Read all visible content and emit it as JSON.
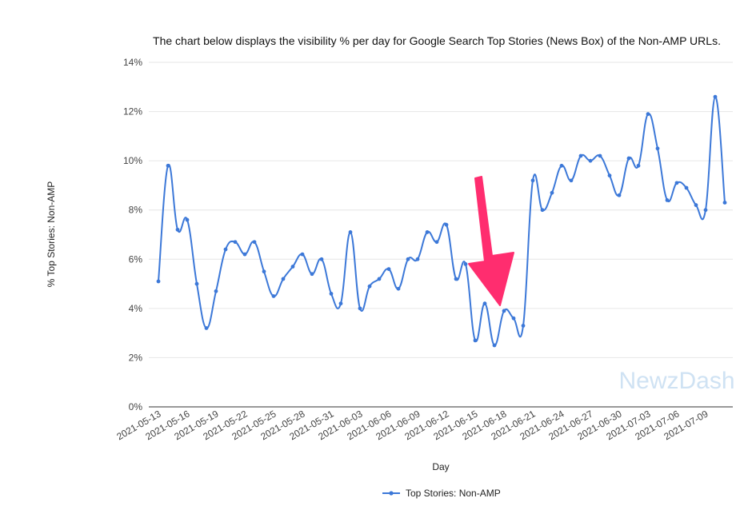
{
  "chart_data": {
    "type": "line",
    "title": "The chart below displays the visibility % per day for Google Search Top Stories (News Box) of the Non-AMP URLs.",
    "xlabel": "Day",
    "ylabel": "% Top Stories: Non-AMP",
    "ylim": [
      0,
      14
    ],
    "y_ticks": [
      "0%",
      "2%",
      "4%",
      "6%",
      "8%",
      "10%",
      "12%",
      "14%"
    ],
    "x_tick_labels": [
      "2021-05-13",
      "2021-05-16",
      "2021-05-19",
      "2021-05-22",
      "2021-05-25",
      "2021-05-28",
      "2021-05-31",
      "2021-06-03",
      "2021-06-06",
      "2021-06-09",
      "2021-06-12",
      "2021-06-15",
      "2021-06-18",
      "2021-06-21",
      "2021-06-24",
      "2021-06-27",
      "2021-06-30",
      "2021-07-03",
      "2021-07-06",
      "2021-07-09"
    ],
    "grid": true,
    "legend_position": "bottom",
    "series": [
      {
        "name": "Top Stories: Non-AMP",
        "color": "#3c78d8",
        "x": [
          "2021-05-13",
          "2021-05-14",
          "2021-05-15",
          "2021-05-16",
          "2021-05-17",
          "2021-05-18",
          "2021-05-19",
          "2021-05-20",
          "2021-05-21",
          "2021-05-22",
          "2021-05-23",
          "2021-05-24",
          "2021-05-25",
          "2021-05-26",
          "2021-05-27",
          "2021-05-28",
          "2021-05-29",
          "2021-05-30",
          "2021-05-31",
          "2021-06-01",
          "2021-06-02",
          "2021-06-03",
          "2021-06-04",
          "2021-06-05",
          "2021-06-06",
          "2021-06-07",
          "2021-06-08",
          "2021-06-09",
          "2021-06-10",
          "2021-06-11",
          "2021-06-12",
          "2021-06-13",
          "2021-06-14",
          "2021-06-15",
          "2021-06-16",
          "2021-06-17",
          "2021-06-18",
          "2021-06-19",
          "2021-06-20",
          "2021-06-21",
          "2021-06-22",
          "2021-06-23",
          "2021-06-24",
          "2021-06-25",
          "2021-06-26",
          "2021-06-27",
          "2021-06-28",
          "2021-06-29",
          "2021-06-30",
          "2021-07-01",
          "2021-07-02",
          "2021-07-03",
          "2021-07-04",
          "2021-07-05",
          "2021-07-06",
          "2021-07-07",
          "2021-07-08",
          "2021-07-09",
          "2021-07-10",
          "2021-07-11"
        ],
        "values": [
          5.1,
          9.8,
          7.2,
          7.6,
          5.0,
          3.2,
          4.7,
          6.4,
          6.7,
          6.2,
          6.7,
          5.5,
          4.5,
          5.2,
          5.7,
          6.2,
          5.4,
          6.0,
          4.6,
          4.2,
          7.1,
          4.0,
          4.9,
          5.2,
          5.6,
          4.8,
          6.0,
          6.0,
          7.1,
          6.7,
          7.4,
          5.2,
          5.8,
          2.7,
          4.2,
          2.5,
          3.9,
          3.6,
          3.3,
          9.2,
          8.0,
          8.7,
          9.8,
          9.2,
          10.2,
          10.0,
          10.2,
          9.4,
          8.6,
          10.1,
          9.8,
          11.9,
          10.5,
          8.4,
          9.1,
          8.9,
          8.2,
          8.0,
          12.6,
          8.3
        ]
      }
    ],
    "annotations": [
      "pink downward arrow pointing to the 2021-06-15 to 2021-06-20 dip"
    ],
    "watermark": "NewzDash",
    "colors": {
      "line": "#3c78d8",
      "arrow": "#ff2d6f",
      "grid": "#e6e6e6",
      "watermark": "#cfe2f3"
    }
  }
}
